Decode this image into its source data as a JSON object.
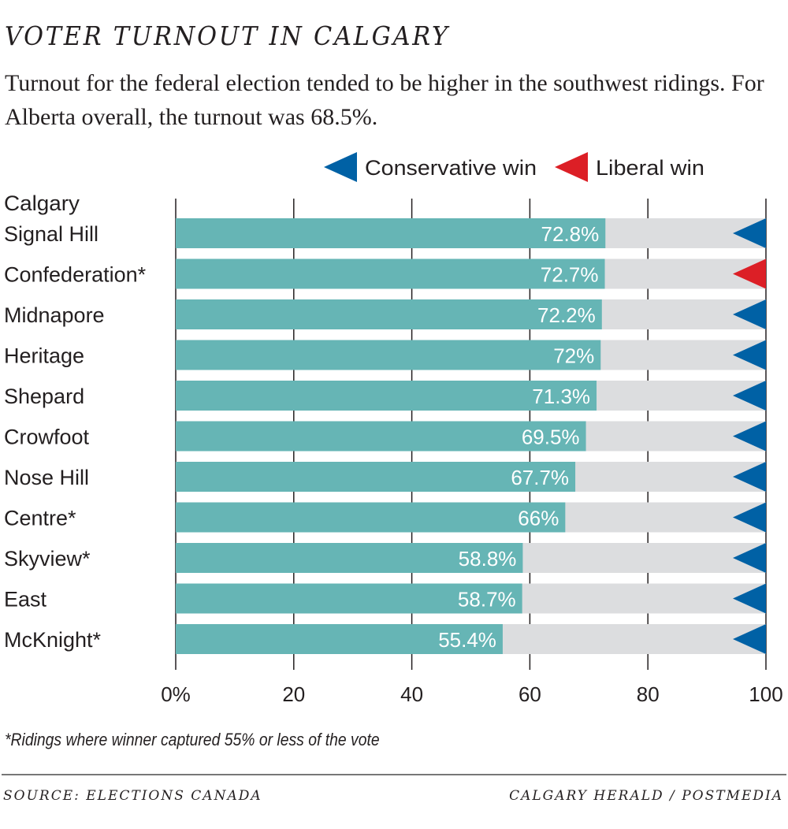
{
  "header": {
    "title": "VOTER TURNOUT IN CALGARY",
    "subtitle": "Turnout for the federal election tended to be higher in the southwest ridings. For Alberta overall, the turnout was 68.5%."
  },
  "footnote": "*Ridings where winner captured 55% or less of the vote",
  "source": "SOURCE: ELECTIONS CANADA",
  "credit": "CALGARY HERALD / POSTMEDIA",
  "chart_data": {
    "type": "bar",
    "orientation": "horizontal",
    "category_header": "Calgary",
    "categories": [
      "Signal Hill",
      "Confederation*",
      "Midnapore",
      "Heritage",
      "Shepard",
      "Crowfoot",
      "Nose Hill",
      "Centre*",
      "Skyview*",
      "East",
      "McKnight*"
    ],
    "values": [
      72.8,
      72.7,
      72.2,
      72,
      71.3,
      69.5,
      67.7,
      66,
      58.8,
      58.7,
      55.4
    ],
    "data_labels": [
      "72.8%",
      "72.7%",
      "72.2%",
      "72%",
      "71.3%",
      "69.5%",
      "67.7%",
      "66%",
      "58.8%",
      "58.7%",
      "55.4%"
    ],
    "winner": [
      "Conservative",
      "Liberal",
      "Conservative",
      "Conservative",
      "Conservative",
      "Conservative",
      "Conservative",
      "Conservative",
      "Conservative",
      "Conservative",
      "Conservative"
    ],
    "xlim": [
      0,
      100
    ],
    "xticks": [
      0,
      20,
      40,
      60,
      80,
      100
    ],
    "xtick_labels": [
      "0%",
      "20",
      "40",
      "60",
      "80",
      "100"
    ],
    "grid": true,
    "legend": {
      "position": "top-right",
      "entries": [
        {
          "label": "Conservative win",
          "color": "#0061a5"
        },
        {
          "label": "Liberal win",
          "color": "#dc1f26"
        }
      ]
    },
    "colors": {
      "bar": "#66b5b5",
      "track": "#dcdddf",
      "conservative": "#0061a5",
      "liberal": "#dc1f26"
    }
  }
}
